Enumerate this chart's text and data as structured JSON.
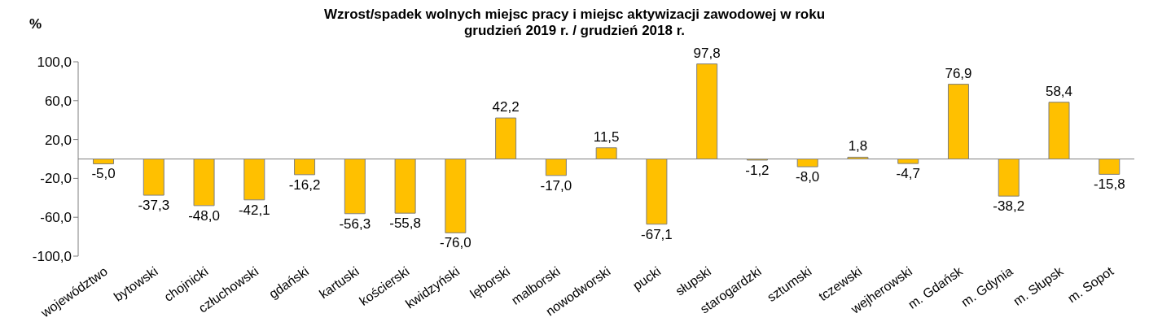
{
  "chart_data": {
    "type": "bar",
    "title": "Wzrost/spadek wolnych miejsc pracy i miejsc aktywizacji zawodowej w roku",
    "subtitle": "grudzień 2019 r. / grudzień 2018 r.",
    "ylabel": "%",
    "categories": [
      "województwo",
      "bytowski",
      "chojnicki",
      "człuchowski",
      "gdański",
      "kartuski",
      "kościerski",
      "kwidzyński",
      "lęborski",
      "malborski",
      "nowodworski",
      "pucki",
      "słupski",
      "starogardzki",
      "sztumski",
      "tczewski",
      "wejherowski",
      "m. Gdańsk",
      "m. Gdynia",
      "m. Słupsk",
      "m. Sopot"
    ],
    "values": [
      -5.0,
      -37.3,
      -48.0,
      -42.1,
      -16.2,
      -56.3,
      -55.8,
      -76.0,
      42.2,
      -17.0,
      11.5,
      -67.1,
      97.8,
      -1.2,
      -8.0,
      1.8,
      -4.7,
      76.9,
      -38.2,
      58.4,
      -15.8
    ],
    "value_labels": [
      "-5,0",
      "-37,3",
      "-48,0",
      "-42,1",
      "-16,2",
      "-56,3",
      "-55,8",
      "-76,0",
      "42,2",
      "-17,0",
      "11,5",
      "-67,1",
      "97,8",
      "-1,2",
      "-8,0",
      "1,8",
      "-4,7",
      "76,9",
      "-38,2",
      "58,4",
      "-15,8"
    ],
    "color": "#ffc000",
    "ylim": [
      -100,
      100
    ],
    "yticks": [
      {
        "value": -100,
        "label": "-100,0"
      },
      {
        "value": -60,
        "label": "-60,0"
      },
      {
        "value": -20,
        "label": "-20,0"
      },
      {
        "value": 20,
        "label": "20,0"
      },
      {
        "value": 60,
        "label": "60,0"
      },
      {
        "value": 100,
        "label": "100,0"
      }
    ],
    "grid": false,
    "legend": false
  }
}
